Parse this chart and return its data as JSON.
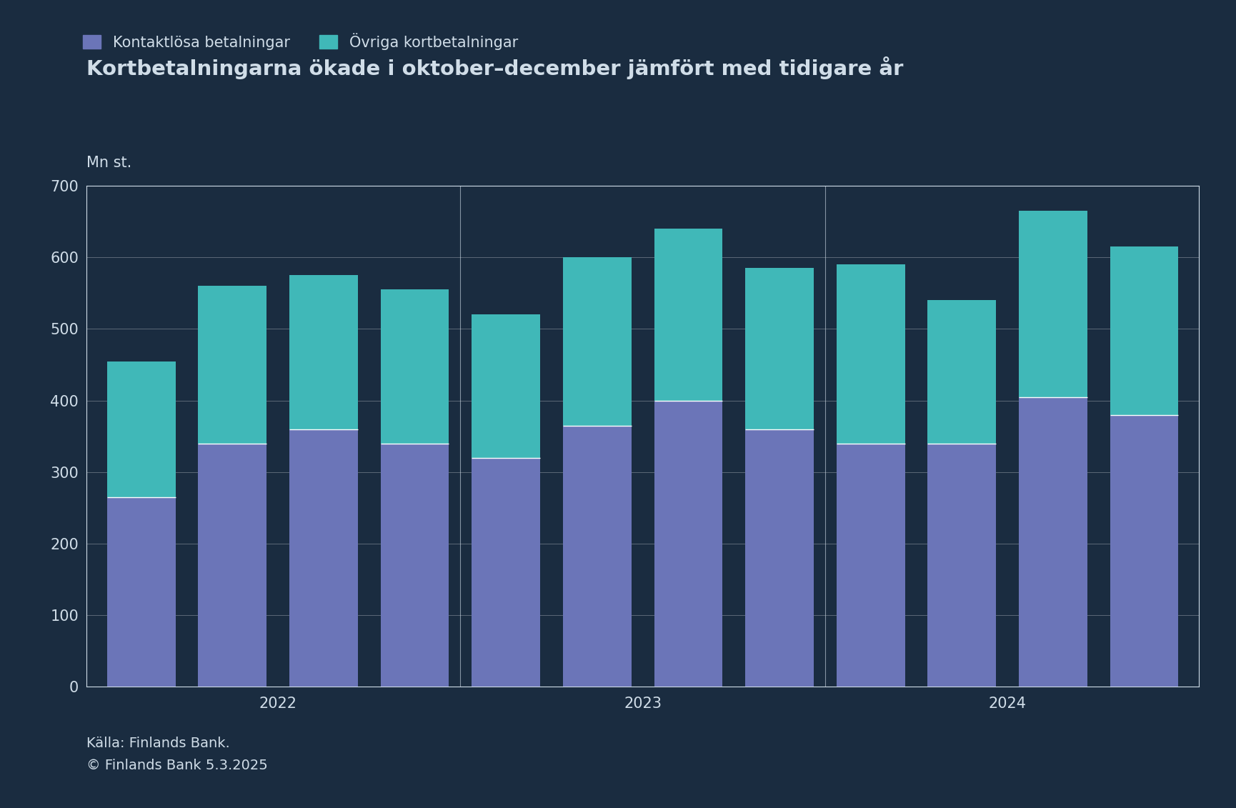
{
  "title": "Kortbetalningarna ökade i oktober–december jämfört med tidigare år",
  "ylabel": "Mn st.",
  "legend": [
    "Kontaktlösa betalningar",
    "Övriga kortbetalningar"
  ],
  "bar_color_kontaktlosa": "#6b75b8",
  "bar_color_ovriga": "#40b8b8",
  "background_color": "#1a2c40",
  "text_color": "#d0dde8",
  "grid_color": "#ffffff",
  "years": [
    "2022",
    "2023",
    "2024"
  ],
  "kontaktlosa": [
    265,
    340,
    360,
    340,
    320,
    365,
    400,
    360,
    340,
    340,
    405,
    380
  ],
  "ovriga": [
    190,
    220,
    215,
    215,
    200,
    235,
    240,
    225,
    250,
    200,
    260,
    235
  ],
  "ylim": [
    0,
    700
  ],
  "yticks": [
    0,
    100,
    200,
    300,
    400,
    500,
    600,
    700
  ],
  "source_line1": "Källa: Finlands Bank.",
  "source_line2": "© Finlands Bank 5.3.2025",
  "title_fontsize": 21,
  "axis_fontsize": 15,
  "tick_fontsize": 15,
  "legend_fontsize": 15,
  "source_fontsize": 14
}
